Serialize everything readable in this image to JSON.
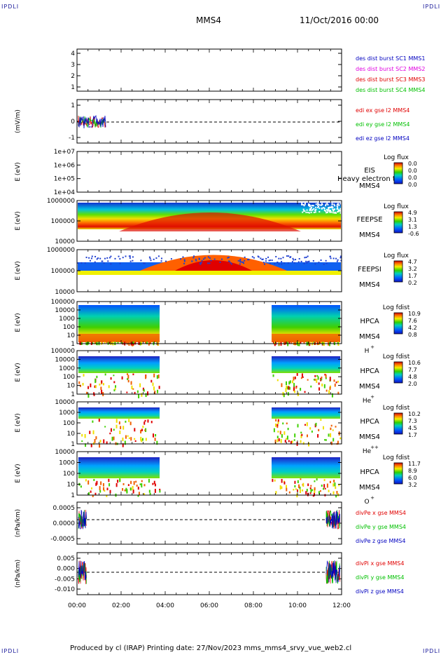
{
  "corners": {
    "tl": "IPDLI",
    "tr": "IPDLI",
    "bl": "IPDLI",
    "br": "IPDLI"
  },
  "header": {
    "spacecraft": "MMS4",
    "date": "11/Oct/2016 00:00"
  },
  "footer": {
    "text": "Produced by cl (IRAP)   Printing date: 27/Nov/2023   mms_mms4_srvy_vue_web2.cl"
  },
  "colors": {
    "red": "#e00000",
    "green": "#00c000",
    "blue": "#0000c0",
    "magenta": "#e000e0"
  },
  "chart_data": [
    {
      "type": "line",
      "id": "burst",
      "yticks": [
        "4",
        "3",
        "2",
        "1"
      ],
      "ylabel": "",
      "legend": [
        {
          "text": "des dist burst SC1 MMS1",
          "color": "#0000c0"
        },
        {
          "text": "des dist burst SC2 MMS2",
          "color": "#e000e0"
        },
        {
          "text": "des dist burst SC3 MMS3",
          "color": "#e00000"
        },
        {
          "text": "des dist burst SC4 MMS4",
          "color": "#00c000"
        }
      ]
    },
    {
      "type": "line",
      "id": "edi",
      "yticks": [
        "1",
        "0",
        "-1"
      ],
      "ylabel": "(mV/m)",
      "legend": [
        {
          "text": "edi ex gse l2 MMS4",
          "color": "#e00000"
        },
        {
          "text": "edi ey gse l2 MMS4",
          "color": "#00c000"
        },
        {
          "text": "edi ez gse l2 MMS4",
          "color": "#0000c0"
        }
      ]
    },
    {
      "type": "heatmap",
      "id": "eis",
      "yticks": [
        "1e+07",
        "1e+06",
        "1e+05",
        "1e+04"
      ],
      "ylabel": "E (eV)",
      "labels": [
        "EIS",
        "MMS4"
      ],
      "overlay": "Heavy electron to",
      "cb_title": "Log flux",
      "cb_ticks": [
        "0.0",
        "0.0",
        "0.0",
        "0.0"
      ]
    },
    {
      "type": "heatmap",
      "id": "feepse",
      "yticks": [
        "1000000",
        "100000",
        "10000"
      ],
      "ylabel": "E (eV)",
      "labels": [
        "FEEPSE",
        "MMS4"
      ],
      "cb_title": "Log flux",
      "cb_ticks": [
        "4.9",
        "3.1",
        "1.3",
        "-0.6"
      ]
    },
    {
      "type": "heatmap",
      "id": "feepsi",
      "yticks": [
        "1000000",
        "100000",
        "10000"
      ],
      "ylabel": "E (eV)",
      "labels": [
        "FEEPSI",
        "MMS4"
      ],
      "cb_title": "Log flux",
      "cb_ticks": [
        "4.7",
        "3.2",
        "1.7",
        "0.2"
      ]
    },
    {
      "type": "heatmap",
      "id": "hpca_h",
      "yticks": [
        "100000",
        "10000",
        "1000",
        "100",
        "10",
        "1"
      ],
      "ylabel": "E (eV)",
      "labels": [
        "HPCA",
        "MMS4"
      ],
      "species": "H",
      "charge": "+",
      "cb_title": "Log fdist",
      "cb_ticks": [
        "10.9",
        "7.6",
        "4.2",
        "0.8"
      ]
    },
    {
      "type": "heatmap",
      "id": "hpca_he",
      "yticks": [
        "100000",
        "10000",
        "1000",
        "100",
        "10",
        "1"
      ],
      "ylabel": "E (eV)",
      "labels": [
        "HPCA",
        "MMS4"
      ],
      "species": "He",
      "charge": "+",
      "cb_title": "Log fdist",
      "cb_ticks": [
        "10.6",
        "7.7",
        "4.8",
        "2.0"
      ]
    },
    {
      "type": "heatmap",
      "id": "hpca_hepp",
      "yticks": [
        "10000",
        "1000",
        "100",
        "10",
        "1"
      ],
      "ylabel": "E (eV)",
      "labels": [
        "HPCA",
        "MMS4"
      ],
      "species": "He",
      "charge": "++",
      "cb_title": "Log fdist",
      "cb_ticks": [
        "10.2",
        "7.3",
        "4.5",
        "1.7"
      ]
    },
    {
      "type": "heatmap",
      "id": "hpca_o",
      "yticks": [
        "10000",
        "1000",
        "100",
        "10",
        "1"
      ],
      "ylabel": "E (eV)",
      "labels": [
        "HPCA",
        "MMS4"
      ],
      "species": "O",
      "charge": "+",
      "cb_title": "Log fdist",
      "cb_ticks": [
        "11.7",
        "8.9",
        "6.0",
        "3.2"
      ]
    },
    {
      "type": "line",
      "id": "divpe",
      "yticks": [
        "0.0005",
        "0.0000",
        "-0.0005"
      ],
      "ylabel": "(nPa/km)",
      "legend": [
        {
          "text": "divPe x gse MMS4",
          "color": "#e00000"
        },
        {
          "text": "divPe y gse MMS4",
          "color": "#00c000"
        },
        {
          "text": "divPe z gse MMS4",
          "color": "#0000c0"
        }
      ]
    },
    {
      "type": "line",
      "id": "divpi",
      "yticks": [
        "0.005",
        "0.000",
        "-0.005",
        "-0.010"
      ],
      "ylabel": "(nPa/km)",
      "legend": [
        {
          "text": "divPi x gse MMS4",
          "color": "#e00000"
        },
        {
          "text": "divPi y gse MMS4",
          "color": "#00c000"
        },
        {
          "text": "divPi z gse MMS4",
          "color": "#0000c0"
        }
      ]
    }
  ],
  "xaxis": {
    "ticks": [
      "00:00",
      "02:00",
      "04:00",
      "06:00",
      "08:00",
      "10:00",
      "12:00"
    ]
  }
}
